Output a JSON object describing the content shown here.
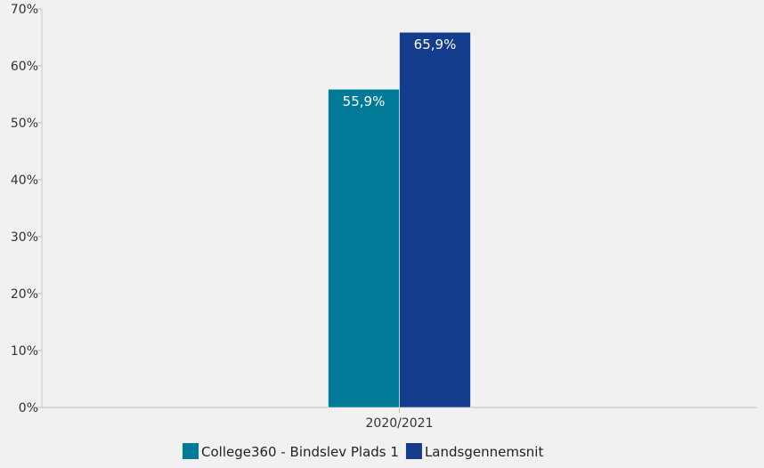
{
  "chart_data": {
    "type": "bar",
    "title": "",
    "xlabel": "",
    "ylabel": "",
    "categories": [
      "2020/2021"
    ],
    "series": [
      {
        "name": "College360 - Bindslev Plads 1",
        "values": [
          55.9
        ],
        "labels": [
          "55,9%"
        ],
        "color": "#007a97"
      },
      {
        "name": "Landsgennemsnit",
        "values": [
          65.9
        ],
        "labels": [
          "65,9%"
        ],
        "color": "#143c8c"
      }
    ],
    "ylim": [
      0,
      70
    ],
    "yticks": [
      0,
      10,
      20,
      30,
      40,
      50,
      60,
      70
    ],
    "ytick_labels": [
      "0%",
      "10%",
      "20%",
      "30%",
      "40%",
      "50%",
      "60%",
      "70%"
    ],
    "grid": false,
    "legend_position": "bottom-left",
    "plot_background": "#f1f1f1"
  }
}
